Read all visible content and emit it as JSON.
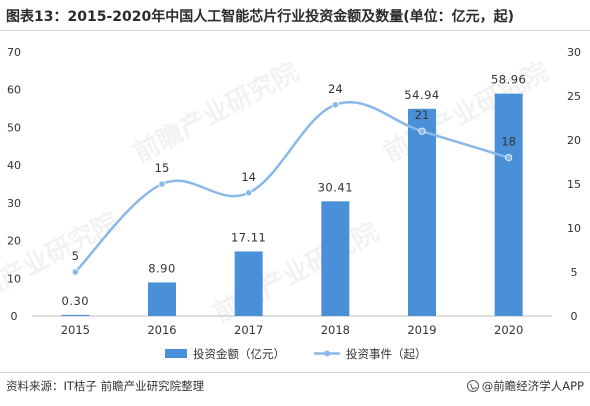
{
  "title": "图表13：2015-2020年中国人工智能芯片行业投资金额及数量(单位：亿元，起)",
  "source": "资料来源：IT桔子 前瞻产业研究院整理",
  "brand": "@前瞻经济学人APP",
  "watermark": "前瞻产业研究院",
  "colors": {
    "bar": "#4a90d9",
    "line": "#8ab8ea",
    "axis": "#bfbfbf",
    "text": "#333333"
  },
  "chart_data": {
    "type": "bar",
    "categories": [
      "2015",
      "2016",
      "2017",
      "2018",
      "2019",
      "2020"
    ],
    "series": [
      {
        "name": "投资金额（亿元）",
        "type": "bar",
        "axis": "left",
        "values": [
          0.3,
          8.9,
          17.11,
          30.41,
          54.94,
          58.96
        ],
        "labels": [
          "0.30",
          "8.90",
          "17.11",
          "30.41",
          "54.94",
          "58.96"
        ]
      },
      {
        "name": "投资事件（起）",
        "type": "line",
        "axis": "right",
        "values": [
          5,
          15,
          14,
          24,
          21,
          18
        ],
        "labels": [
          "5",
          "15",
          "14",
          "24",
          "21",
          "18"
        ]
      }
    ],
    "y_left": {
      "min": 0,
      "max": 70,
      "ticks": [
        0,
        10,
        20,
        30,
        40,
        50,
        60,
        70
      ]
    },
    "y_right": {
      "min": 0,
      "max": 30,
      "ticks": [
        0,
        5,
        10,
        15,
        20,
        25,
        30
      ]
    },
    "grid": false,
    "legend_position": "bottom"
  }
}
